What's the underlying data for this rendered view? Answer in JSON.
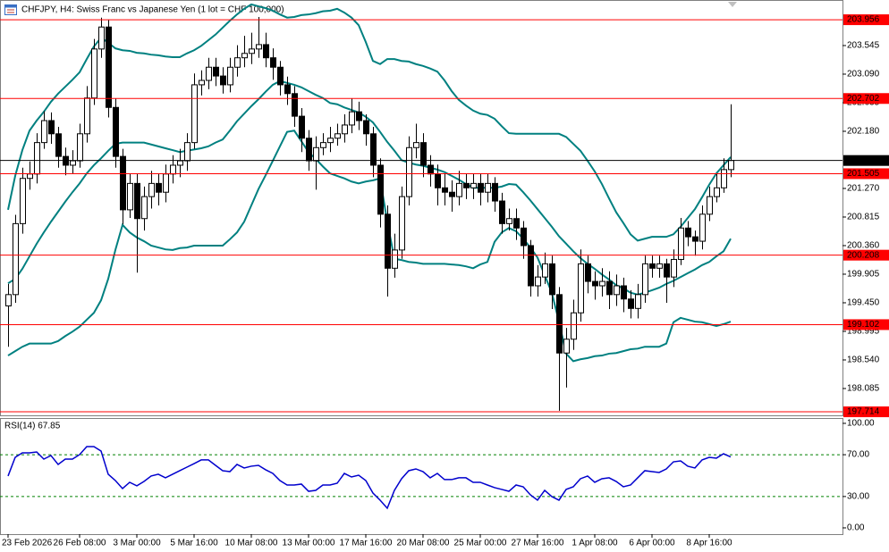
{
  "chart_data": {
    "type": "candlestick",
    "title": "CHFJPY, H4:  Swiss Franc vs Japanese Yen (1 lot = CHF 100,000)",
    "color": "#000000",
    "categories": [
      "23 Feb 2026",
      null,
      null,
      null,
      null,
      null,
      null,
      null,
      null,
      null,
      "26 Feb 08:00",
      null,
      null,
      null,
      null,
      null,
      null,
      null,
      "3 Mar 00:00",
      null,
      null,
      null,
      null,
      null,
      null,
      null,
      "5 Mar 16:00",
      null,
      null,
      null,
      null,
      null,
      null,
      null,
      "10 Mar 08:00",
      null,
      null,
      null,
      null,
      null,
      null,
      null,
      "13 Mar 00:00",
      null,
      null,
      null,
      null,
      null,
      null,
      null,
      "17 Mar 16:00",
      null,
      null,
      null,
      null,
      null,
      null,
      null,
      "20 Mar 08:00",
      null,
      null,
      null,
      null,
      null,
      null,
      null,
      "25 Mar 00:00",
      null,
      null,
      null,
      null,
      null,
      null,
      null,
      "27 Mar 16:00",
      null,
      null,
      null,
      null,
      null,
      null,
      null,
      "1 Apr 08:00",
      null,
      null,
      null,
      null,
      null,
      null,
      null,
      "6 Apr 00:00",
      null,
      null,
      null,
      null,
      null,
      null,
      null,
      "8 Apr 16:00",
      null,
      null,
      null
    ],
    "open": [
      199.4,
      199.58,
      200.71,
      201.43,
      201.5,
      202.0,
      202.35,
      202.14,
      201.78,
      201.64,
      201.71,
      202.14,
      202.71,
      203.49,
      203.84,
      202.56,
      201.78,
      200.93,
      201.35,
      200.79,
      201.14,
      201.35,
      201.21,
      201.5,
      201.64,
      201.71,
      202.0,
      202.92,
      202.99,
      203.2,
      203.06,
      202.92,
      203.2,
      203.35,
      203.42,
      203.49,
      203.56,
      203.35,
      203.2,
      202.92,
      202.78,
      202.42,
      202.07,
      201.71,
      201.92,
      202.0,
      202.07,
      202.14,
      202.28,
      202.49,
      202.35,
      202.14,
      201.64,
      200.86,
      200.0,
      200.29,
      201.14,
      201.92,
      202.0,
      201.64,
      201.5,
      201.28,
      201.21,
      201.14,
      201.35,
      201.28,
      201.35,
      201.21,
      201.35,
      201.07,
      200.71,
      200.79,
      200.64,
      200.36,
      199.72,
      199.86,
      200.07,
      199.58,
      198.65,
      198.87,
      199.29,
      200.07,
      199.79,
      199.72,
      199.79,
      199.58,
      199.72,
      199.51,
      199.36,
      199.58,
      200.07,
      200.0,
      200.07,
      199.86,
      200.14,
      200.64,
      200.5,
      200.43,
      200.86,
      201.14,
      201.28,
      201.57
    ],
    "high": [
      199.75,
      200.85,
      201.6,
      201.7,
      202.15,
      202.5,
      202.48,
      202.25,
      201.92,
      201.88,
      202.3,
      202.9,
      203.65,
      203.99,
      203.95,
      202.7,
      201.9,
      201.5,
      201.5,
      201.3,
      201.55,
      201.5,
      201.65,
      201.8,
      201.9,
      202.15,
      203.1,
      203.15,
      203.35,
      203.35,
      203.2,
      203.35,
      203.55,
      203.7,
      203.75,
      204.0,
      203.75,
      203.5,
      203.3,
      203.05,
      202.9,
      202.55,
      202.2,
      202.1,
      202.15,
      202.25,
      202.3,
      202.45,
      202.7,
      202.65,
      202.45,
      202.25,
      201.75,
      201.0,
      200.55,
      201.3,
      202.1,
      202.3,
      202.15,
      201.8,
      201.65,
      201.5,
      201.4,
      201.55,
      201.5,
      201.5,
      201.5,
      201.5,
      201.45,
      201.2,
      200.95,
      200.95,
      200.75,
      200.45,
      200.05,
      200.25,
      200.2,
      199.7,
      199.05,
      199.5,
      200.3,
      200.2,
      199.95,
      200.0,
      199.95,
      199.9,
      199.85,
      199.65,
      199.75,
      200.2,
      200.2,
      200.2,
      200.15,
      200.3,
      200.8,
      200.75,
      200.6,
      201.0,
      201.3,
      201.5,
      201.75,
      202.61
    ],
    "low": [
      198.75,
      199.45,
      200.55,
      201.25,
      201.35,
      201.9,
      201.98,
      201.6,
      201.48,
      201.5,
      201.6,
      202.0,
      202.6,
      203.35,
      202.4,
      201.6,
      200.7,
      200.8,
      199.93,
      200.6,
      200.95,
      201.0,
      201.05,
      201.35,
      201.45,
      201.55,
      201.9,
      202.75,
      202.85,
      202.9,
      202.78,
      202.8,
      203.05,
      203.2,
      203.25,
      203.35,
      203.2,
      203.0,
      202.75,
      202.6,
      202.25,
      201.85,
      201.55,
      201.25,
      201.8,
      201.85,
      201.95,
      202.0,
      202.15,
      202.2,
      201.95,
      201.45,
      200.65,
      199.55,
      199.85,
      200.15,
      201.0,
      201.75,
      201.45,
      201.3,
      201.0,
      201.0,
      200.9,
      201.0,
      201.1,
      201.1,
      201.0,
      201.05,
      200.9,
      200.55,
      200.6,
      200.45,
      200.15,
      199.55,
      199.55,
      199.75,
      199.35,
      197.73,
      198.1,
      198.7,
      199.15,
      199.6,
      199.5,
      199.55,
      199.35,
      199.4,
      199.3,
      199.2,
      199.2,
      199.45,
      199.85,
      199.85,
      199.45,
      199.7,
      200.05,
      200.35,
      200.2,
      200.3,
      200.75,
      201.05,
      201.2,
      201.45
    ],
    "close": [
      199.58,
      200.71,
      201.43,
      201.5,
      202.0,
      202.35,
      202.14,
      201.78,
      201.64,
      201.71,
      202.14,
      202.71,
      203.49,
      203.84,
      202.56,
      201.78,
      200.93,
      201.35,
      200.79,
      201.14,
      201.35,
      201.21,
      201.5,
      201.64,
      201.71,
      202.0,
      202.92,
      202.99,
      203.2,
      203.06,
      202.92,
      203.2,
      203.35,
      203.42,
      203.49,
      203.56,
      203.35,
      203.2,
      202.92,
      202.78,
      202.42,
      202.07,
      201.71,
      201.92,
      202.0,
      202.07,
      202.14,
      202.28,
      202.49,
      202.35,
      202.14,
      201.64,
      200.86,
      200.0,
      200.29,
      201.14,
      201.92,
      202.0,
      201.64,
      201.5,
      201.28,
      201.21,
      201.14,
      201.35,
      201.28,
      201.35,
      201.21,
      201.35,
      201.07,
      200.71,
      200.79,
      200.64,
      200.36,
      199.72,
      199.86,
      200.07,
      199.58,
      198.65,
      198.87,
      199.29,
      200.07,
      199.79,
      199.72,
      199.79,
      199.58,
      199.72,
      199.51,
      199.36,
      199.58,
      200.07,
      200.0,
      200.07,
      199.86,
      200.14,
      200.64,
      200.5,
      200.43,
      200.86,
      201.14,
      201.28,
      201.57,
      201.715
    ],
    "ylim": [
      197.658,
      204.27
    ],
    "yticks": [
      203.545,
      {
        "value": 203.09,
        "label": "203.090"
      },
      202.635,
      {
        "value": 202.18,
        "label": "202.180"
      },
      {
        "value": 201.27,
        "label": "201.270"
      },
      200.815,
      {
        "value": 200.36,
        "label": "200.360"
      },
      199.905,
      {
        "value": 199.45,
        "label": "199.450"
      },
      198.995,
      {
        "value": 198.54,
        "label": "198.540"
      },
      198.085
    ],
    "bands": [
      {
        "color": "#008080",
        "values": [
          200.93,
          201.47,
          201.88,
          202.19,
          202.35,
          202.49,
          202.65,
          202.78,
          202.89,
          203.0,
          203.12,
          203.33,
          203.53,
          203.67,
          203.59,
          203.5,
          203.47,
          203.46,
          203.43,
          203.42,
          203.4,
          203.39,
          203.37,
          203.36,
          203.36,
          203.42,
          203.47,
          203.54,
          203.63,
          203.72,
          203.83,
          203.94,
          204.04,
          204.13,
          204.2,
          204.17,
          204.14,
          204.1,
          204.04,
          203.99,
          204.0,
          204.03,
          204.04,
          204.06,
          204.09,
          204.1,
          204.13,
          204.07,
          203.99,
          203.87,
          203.6,
          203.3,
          203.25,
          203.33,
          203.33,
          203.3,
          203.29,
          203.25,
          203.22,
          203.18,
          203.13,
          202.99,
          202.82,
          202.68,
          202.59,
          202.51,
          202.46,
          202.44,
          202.38,
          202.26,
          202.15,
          202.14,
          202.14,
          202.14,
          202.14,
          202.14,
          202.14,
          202.14,
          202.09,
          201.98,
          201.87,
          201.71,
          201.54,
          201.34,
          201.11,
          200.89,
          200.72,
          200.54,
          200.44,
          200.47,
          200.5,
          200.5,
          200.5,
          200.54,
          200.66,
          200.8,
          200.94,
          201.13,
          201.33,
          201.51,
          201.64,
          201.77
        ]
      },
      {
        "color": "#008080",
        "values": [
          199.76,
          199.83,
          199.99,
          200.19,
          200.39,
          200.57,
          200.74,
          200.9,
          201.06,
          201.21,
          201.35,
          201.51,
          201.64,
          201.75,
          201.87,
          201.98,
          202.0,
          202.0,
          202.0,
          202.0,
          201.97,
          201.94,
          201.91,
          201.88,
          201.85,
          201.87,
          201.89,
          201.91,
          201.94,
          202.0,
          202.05,
          202.19,
          202.34,
          202.46,
          202.58,
          202.69,
          202.81,
          202.92,
          202.98,
          202.95,
          202.92,
          202.88,
          202.82,
          202.76,
          202.71,
          202.63,
          202.61,
          202.56,
          202.52,
          202.48,
          202.41,
          202.32,
          202.17,
          202.01,
          201.87,
          201.72,
          201.68,
          201.65,
          201.63,
          201.6,
          201.57,
          201.53,
          201.47,
          201.41,
          201.34,
          201.28,
          201.28,
          201.28,
          201.28,
          201.3,
          201.34,
          201.33,
          201.21,
          201.08,
          200.94,
          200.8,
          200.66,
          200.51,
          200.39,
          200.27,
          200.16,
          200.07,
          199.99,
          199.9,
          199.82,
          199.73,
          199.68,
          199.61,
          199.58,
          199.61,
          199.65,
          199.69,
          199.75,
          199.8,
          199.86,
          199.92,
          199.98,
          200.05,
          200.1,
          200.19,
          200.27,
          200.47
        ]
      },
      {
        "color": "#008080",
        "values": [
          198.61,
          198.68,
          198.75,
          198.8,
          198.8,
          198.8,
          198.8,
          198.84,
          198.92,
          198.99,
          199.07,
          199.18,
          199.29,
          199.49,
          199.83,
          200.29,
          200.69,
          200.57,
          200.49,
          200.43,
          200.36,
          200.33,
          200.3,
          200.29,
          200.32,
          200.33,
          200.36,
          200.36,
          200.36,
          200.36,
          200.36,
          200.46,
          200.57,
          200.74,
          201.0,
          201.26,
          201.48,
          201.71,
          201.94,
          202.17,
          202.19,
          202.02,
          201.85,
          201.74,
          201.62,
          201.51,
          201.47,
          201.43,
          201.38,
          201.35,
          201.38,
          201.4,
          201.43,
          200.74,
          200.15,
          200.13,
          200.1,
          200.09,
          200.07,
          200.07,
          200.07,
          200.07,
          200.06,
          200.05,
          200.03,
          200.0,
          200.06,
          200.1,
          200.42,
          200.57,
          200.64,
          200.59,
          200.47,
          200.33,
          200.17,
          199.89,
          199.61,
          199.15,
          198.64,
          198.52,
          198.55,
          198.57,
          198.6,
          198.61,
          198.64,
          198.65,
          198.68,
          198.71,
          198.72,
          198.75,
          198.75,
          198.75,
          198.8,
          199.14,
          199.21,
          199.18,
          199.15,
          199.14,
          199.11,
          199.08,
          199.11,
          199.15
        ]
      }
    ],
    "hlines": [
      {
        "value": 203.956,
        "color": "#ff0000"
      },
      {
        "value": 202.702,
        "color": "#ff0000"
      },
      {
        "value": 201.505,
        "color": "#ff0000"
      },
      {
        "value": 200.208,
        "color": "#ff0000"
      },
      {
        "value": 199.102,
        "color": "#ff0000"
      },
      {
        "value": 197.714,
        "color": "#ff0000"
      }
    ],
    "last_price": {
      "value": 201.715,
      "color": "#000000"
    },
    "rsi": {
      "title": "RSI(14) 67.85",
      "color": "#0000cd",
      "values": [
        49.6,
        67.5,
        71.8,
        71.8,
        72.6,
        65.8,
        69.2,
        60.7,
        65.8,
        65.8,
        70.1,
        77.8,
        77.8,
        73.5,
        51.3,
        45.3,
        37.6,
        43.6,
        40.2,
        44.4,
        49.6,
        51.3,
        47.9,
        51.3,
        54.7,
        58.1,
        61.5,
        65.0,
        65.0,
        59.8,
        54.7,
        53.8,
        60.7,
        57.3,
        59.0,
        59.8,
        55.6,
        52.1,
        45.3,
        41.0,
        41.0,
        41.9,
        35.0,
        35.9,
        41.0,
        41.0,
        42.7,
        52.1,
        48.7,
        50.4,
        45.3,
        33.3,
        26.5,
        18.8,
        35.9,
        47.0,
        54.7,
        56.4,
        53.8,
        47.9,
        52.1,
        46.2,
        46.2,
        47.9,
        47.9,
        43.6,
        43.6,
        41.0,
        38.5,
        36.8,
        35.0,
        41.0,
        39.3,
        31.6,
        26.5,
        35.9,
        29.9,
        26.5,
        36.8,
        39.3,
        47.0,
        49.6,
        43.6,
        47.0,
        47.9,
        44.4,
        39.3,
        41.0,
        47.9,
        54.7,
        53.8,
        53.0,
        56.4,
        63.2,
        64.1,
        59.0,
        57.3,
        65.0,
        67.5,
        66.7,
        70.9,
        67.85
      ],
      "ylim": [
        -6,
        105.1
      ],
      "yticks": [
        {
          "value": 100,
          "label": "100.00"
        },
        {
          "value": 70,
          "label": "70.00"
        },
        {
          "value": 30,
          "label": "30.00"
        },
        {
          "value": 0,
          "label": "0.00"
        }
      ],
      "levels": [
        70,
        30
      ],
      "level_color": "#008000"
    }
  }
}
